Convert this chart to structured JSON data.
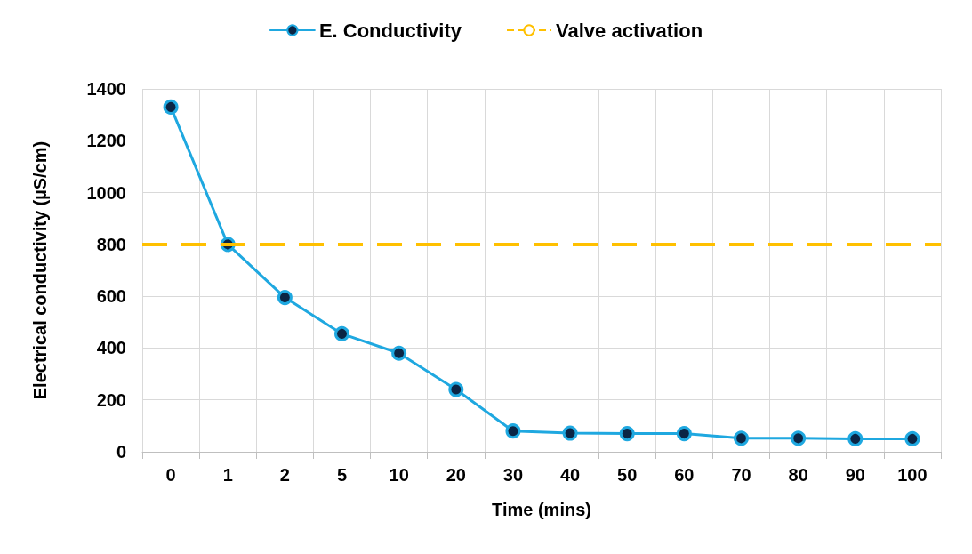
{
  "chart_data": {
    "type": "line",
    "xlabel": "Time (mins)",
    "ylabel": "Electrical conductivity (µS/cm)",
    "categories": [
      "0",
      "1",
      "2",
      "5",
      "10",
      "20",
      "30",
      "40",
      "50",
      "60",
      "70",
      "80",
      "90",
      "100"
    ],
    "series": [
      {
        "name": "E. Conductivity",
        "color": "#1fa8e0",
        "values": [
          1330,
          800,
          595,
          455,
          380,
          240,
          80,
          72,
          70,
          70,
          52,
          52,
          50,
          50
        ]
      }
    ],
    "ref_lines": [
      {
        "axis": "y",
        "value": 800,
        "label": "Valve activation",
        "color": "#ffc000",
        "line_style": "dashed"
      }
    ],
    "ylim": [
      0,
      1400
    ],
    "yticks": [
      0,
      200,
      400,
      600,
      800,
      1000,
      1200,
      1400
    ],
    "grid": true,
    "legend": "top",
    "marker": "circle",
    "line_style": "solid"
  }
}
